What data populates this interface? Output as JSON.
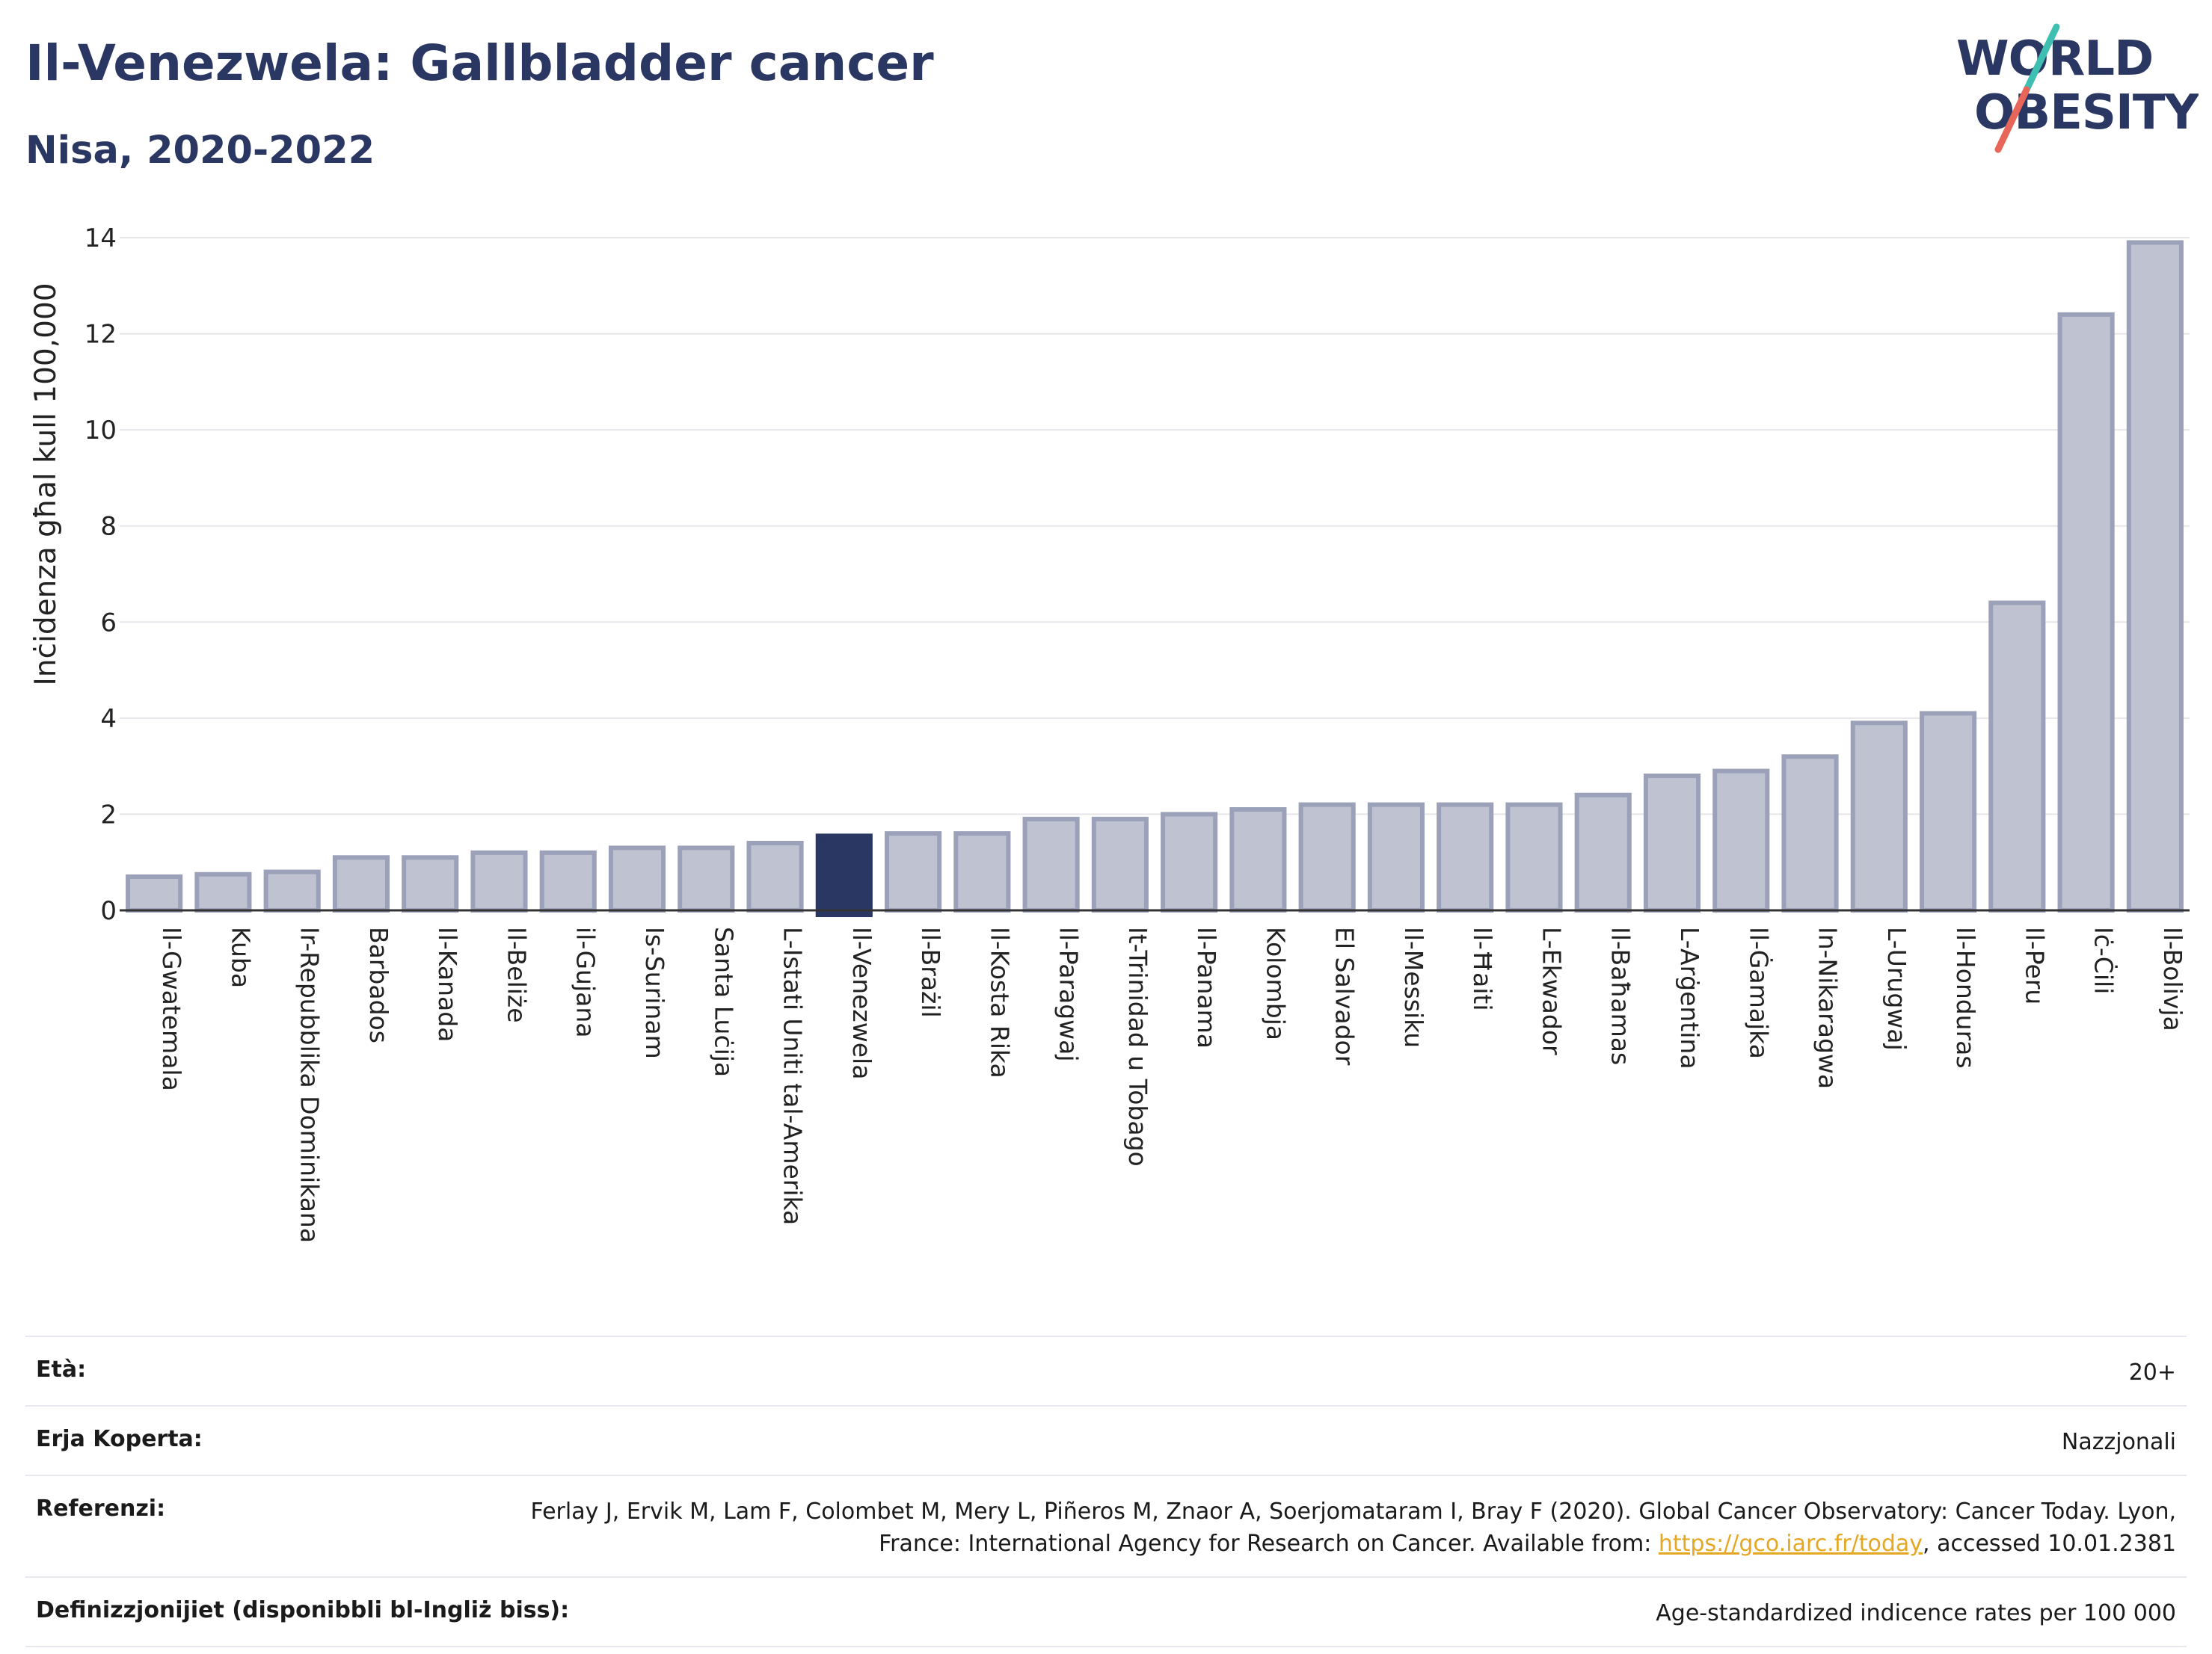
{
  "header": {
    "title": "Il-Venezwela: Gallbladder cancer",
    "subtitle": "Nisa, 2020-2022"
  },
  "logo": {
    "line1": "WORLD",
    "line2": "OBESITY",
    "slash_colors": [
      "#3fbfb2",
      "#e8655a"
    ]
  },
  "colors": {
    "bar": "#bfc3d1",
    "bar_edge": "#9ba1b8",
    "highlight": "#2b3763",
    "grid": "#e6e6ea",
    "axis": "#333333"
  },
  "chart_data": {
    "type": "bar",
    "ylabel": "Inċidenza għal kull 100,000",
    "ylim": [
      0,
      14
    ],
    "yticks": [
      0,
      2,
      4,
      6,
      8,
      10,
      12,
      14
    ],
    "grid": true,
    "highlight": "Il-Venezwela",
    "categories": [
      "Il-Gwatemala",
      "Kuba",
      "Ir-Repubblika Dominikana",
      "Barbados",
      "Il-Kanada",
      "Il-Beliże",
      "il-Gujana",
      "Is-Surinam",
      "Santa Luċija",
      "L-Istati Uniti tal-Amerika",
      "Il-Venezwela",
      "Il-Brażil",
      "Il-Kosta Rika",
      "Il-Paragwaj",
      "It-Trinidad u Tobago",
      "Il-Panama",
      "Kolombja",
      "El Salvador",
      "Il-Messiku",
      "Il-Ħaiti",
      "L-Ekwador",
      "Il-Baħamas",
      "L-Arġentina",
      "Il-Ġamajka",
      "In-Nikaragwa",
      "L-Urugwaj",
      "Il-Honduras",
      "Il-Peru",
      "Iċ-Ċili",
      "Il-Bolivja"
    ],
    "values": [
      0.7,
      0.75,
      0.8,
      1.1,
      1.1,
      1.2,
      1.2,
      1.3,
      1.3,
      1.4,
      1.55,
      1.6,
      1.6,
      1.9,
      1.9,
      2.0,
      2.1,
      2.2,
      2.2,
      2.2,
      2.2,
      2.4,
      2.8,
      2.9,
      3.2,
      3.9,
      4.1,
      6.4,
      12.4,
      13.9
    ]
  },
  "info": {
    "age_label": "Età:",
    "age_value": "20+",
    "area_label": "Erja Koperta:",
    "area_value": "Nazzjonali",
    "ref_label": "Referenzi:",
    "ref_text_1": "Ferlay J, Ervik M, Lam F, Colombet M, Mery L, Piñeros M, Znaor A, Soerjomataram I, Bray F (2020). Global Cancer Observatory: Cancer Today. Lyon, France: International Agency for Research on Cancer. Available from: ",
    "ref_link": "https://gco.iarc.fr/today",
    "ref_text_2": ", accessed 10.01.2381",
    "def_label": "Definizzjonijiet (disponibbli bl-Ingliż biss):",
    "def_value": "Age-standardized indicence rates per 100 000"
  }
}
